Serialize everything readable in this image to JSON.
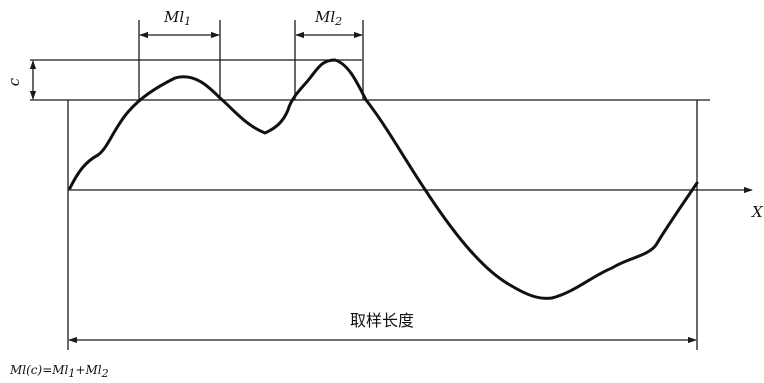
{
  "labels": {
    "ml1_main": "Ml",
    "ml1_sub": "1",
    "ml2_main": "Ml",
    "ml2_sub": "2",
    "c": "c",
    "x_axis": "X",
    "sampling_length": "取样长度",
    "formula": {
      "p1": "Ml(c)=Ml",
      "p1_sub": "1",
      "p2": "+Ml",
      "p2_sub": "2"
    }
  },
  "colors": {
    "line": "#1a1a1a",
    "profile": "#111111",
    "background": "#ffffff"
  }
}
